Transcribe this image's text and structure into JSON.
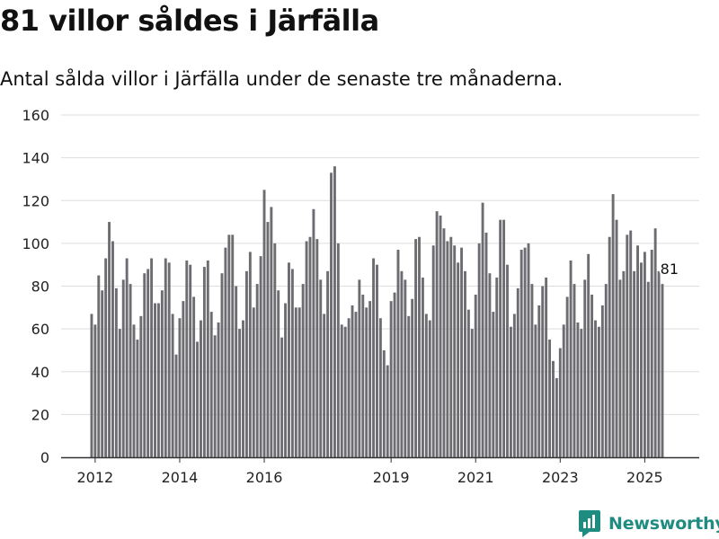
{
  "header": {
    "title": "81 villor såldes i Järfälla",
    "subtitle": "Antal sålda villor i Järfälla under de senaste tre månaderna."
  },
  "brand": {
    "name": "Newsworthy",
    "icon": "newsworthy-logo-icon",
    "color": "#1e8c80"
  },
  "colors": {
    "bar": "#6d6c71",
    "highlight": "#1a9a8c",
    "grid": "#dddddd",
    "axis": "#333333"
  },
  "chart_data": {
    "type": "bar",
    "title": "81 villor såldes i Järfälla",
    "subtitle": "Antal sålda villor i Järfälla under de senaste tre månaderna.",
    "xlabel": "",
    "ylabel": "",
    "ylim": [
      0,
      160
    ],
    "yticks": [
      0,
      20,
      40,
      60,
      80,
      100,
      120,
      140,
      160
    ],
    "grid": true,
    "x_axis_type": "date",
    "xticks": [
      {
        "label": "2012",
        "date": "2012-01"
      },
      {
        "label": "2014",
        "date": "2014-01"
      },
      {
        "label": "2016",
        "date": "2016-01"
      },
      {
        "label": "2019",
        "date": "2019-01"
      },
      {
        "label": "2021",
        "date": "2021-01"
      },
      {
        "label": "2023",
        "date": "2023-01"
      },
      {
        "label": "2025",
        "date": "2025-01"
      }
    ],
    "start_month": "2011-12",
    "end_month": "2025-08",
    "highlight": {
      "date": "2025-08",
      "value": 81,
      "label": "81"
    },
    "values": [
      67,
      62,
      85,
      78,
      93,
      110,
      101,
      79,
      60,
      83,
      93,
      81,
      62,
      55,
      66,
      86,
      88,
      93,
      72,
      72,
      78,
      93,
      91,
      67,
      48,
      65,
      73,
      92,
      90,
      75,
      54,
      64,
      89,
      92,
      68,
      57,
      63,
      86,
      98,
      104,
      104,
      80,
      60,
      64,
      87,
      96,
      70,
      81,
      94,
      125,
      110,
      117,
      100,
      78,
      56,
      72,
      91,
      88,
      70,
      70,
      81,
      101,
      103,
      116,
      102,
      83,
      67,
      87,
      133,
      136,
      100,
      62,
      61,
      65,
      71,
      68,
      83,
      76,
      70,
      73,
      93,
      90,
      65,
      50,
      43,
      73,
      77,
      97,
      87,
      83,
      66,
      74,
      102,
      103,
      84,
      67,
      64,
      99,
      115,
      113,
      107,
      101,
      103,
      99,
      91,
      98,
      87,
      69,
      60,
      76,
      100,
      119,
      105,
      86,
      68,
      84,
      111,
      111,
      90,
      61,
      67,
      79,
      97,
      98,
      100,
      81,
      62,
      71,
      80,
      84,
      55,
      45,
      37,
      51,
      62,
      75,
      92,
      81,
      63,
      60,
      83,
      95,
      76,
      64,
      61,
      71,
      81,
      103,
      123,
      111,
      83,
      87,
      104,
      106,
      87,
      99,
      91,
      96,
      82,
      97,
      107,
      87,
      81
    ]
  }
}
